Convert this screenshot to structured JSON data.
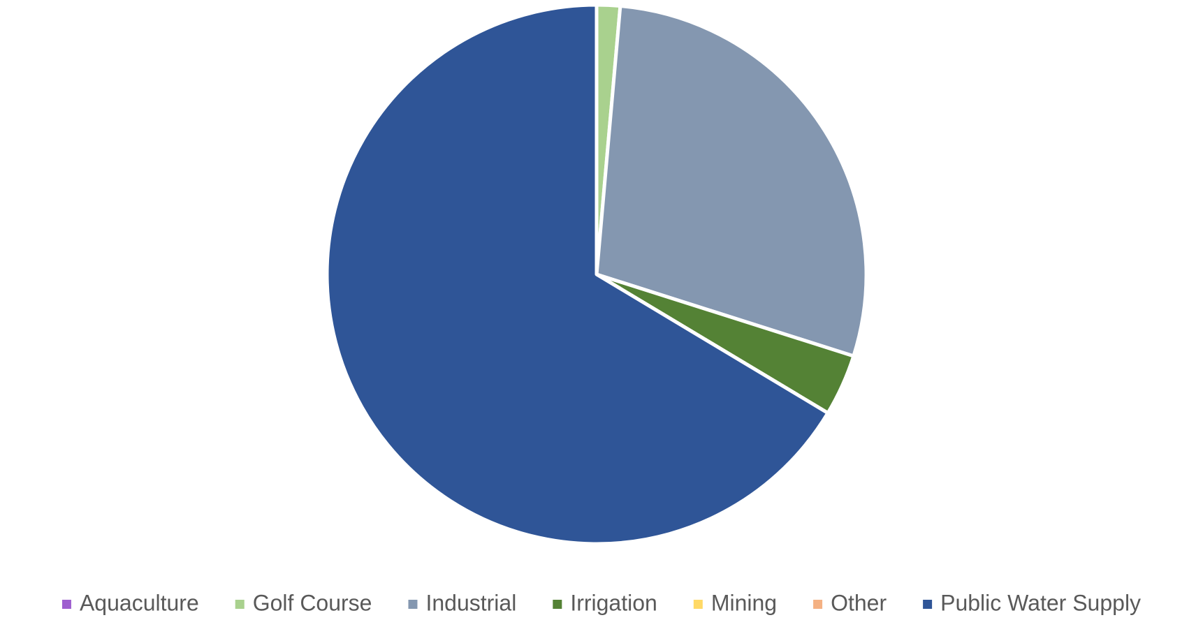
{
  "chart_data": {
    "type": "pie",
    "categories": [
      "Aquaculture",
      "Golf Course",
      "Industrial",
      "Irrigation",
      "Mining",
      "Other",
      "Public Water Supply"
    ],
    "values": [
      0,
      1.4,
      28.5,
      3.7,
      0,
      0,
      66.4
    ],
    "colors": [
      "#9e5fcf",
      "#a9d18e",
      "#8497b0",
      "#548235",
      "#ffd966",
      "#f4b183",
      "#2f5597"
    ],
    "legend": "bottom"
  }
}
